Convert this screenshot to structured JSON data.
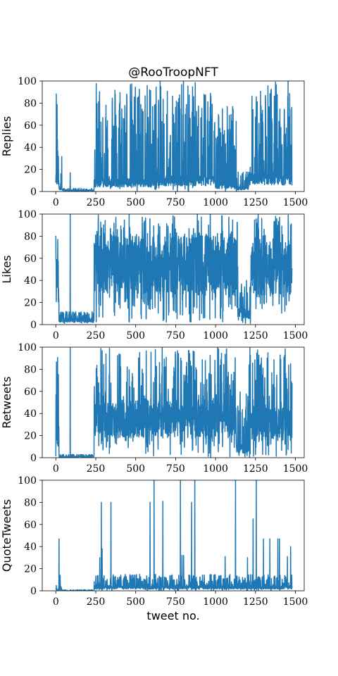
{
  "chart_data": {
    "type": "line",
    "title": "@RooTroopNFT",
    "xlabel": "tweet no.",
    "x_range": [
      0,
      1480
    ],
    "x_ticks": [
      0,
      250,
      500,
      750,
      1000,
      1250,
      1500
    ],
    "y_ticks": [
      0,
      20,
      40,
      60,
      80,
      100
    ],
    "line_color": "#1f77b4",
    "panels": [
      {
        "ylabel": "Replies",
        "ylim": [
          0,
          100
        ],
        "segments": [
          {
            "x0": 0,
            "x1": 20,
            "lo": 0,
            "hi": 100,
            "base": 10
          },
          {
            "x0": 20,
            "x1": 40,
            "lo": 0,
            "hi": 57,
            "base": 3
          },
          {
            "x0": 40,
            "x1": 240,
            "lo": 0,
            "hi": 3,
            "base": 1
          },
          {
            "x0": 240,
            "x1": 600,
            "lo": 0,
            "hi": 100,
            "base": 8
          },
          {
            "x0": 600,
            "x1": 1000,
            "lo": 0,
            "hi": 100,
            "base": 10
          },
          {
            "x0": 1000,
            "x1": 1130,
            "lo": 0,
            "hi": 80,
            "base": 5
          },
          {
            "x0": 1130,
            "x1": 1210,
            "lo": 0,
            "hi": 18,
            "base": 3
          },
          {
            "x0": 1210,
            "x1": 1480,
            "lo": 0,
            "hi": 100,
            "base": 12
          }
        ],
        "spikes": [
          [
            90,
            17
          ],
          [
            1460,
            45
          ],
          [
            1470,
            42
          ]
        ]
      },
      {
        "ylabel": "Likes",
        "ylim": [
          0,
          100
        ],
        "segments": [
          {
            "x0": 0,
            "x1": 20,
            "lo": 5,
            "hi": 100,
            "base": 40
          },
          {
            "x0": 20,
            "x1": 240,
            "lo": 1,
            "hi": 12,
            "base": 4
          },
          {
            "x0": 240,
            "x1": 1140,
            "lo": 2,
            "hi": 100,
            "base": 55
          },
          {
            "x0": 1140,
            "x1": 1220,
            "lo": 1,
            "hi": 40,
            "base": 10
          },
          {
            "x0": 1220,
            "x1": 1480,
            "lo": 10,
            "hi": 100,
            "base": 50
          }
        ],
        "spikes": [
          [
            90,
            100
          ],
          [
            1470,
            90
          ]
        ]
      },
      {
        "ylabel": "Retweets",
        "ylim": [
          0,
          100
        ],
        "segments": [
          {
            "x0": 0,
            "x1": 20,
            "lo": 0,
            "hi": 100,
            "base": 20
          },
          {
            "x0": 20,
            "x1": 240,
            "lo": 0,
            "hi": 3,
            "base": 1
          },
          {
            "x0": 240,
            "x1": 1130,
            "lo": 0,
            "hi": 100,
            "base": 35
          },
          {
            "x0": 1130,
            "x1": 1210,
            "lo": 0,
            "hi": 60,
            "base": 8
          },
          {
            "x0": 1210,
            "x1": 1480,
            "lo": 0,
            "hi": 100,
            "base": 30
          }
        ],
        "spikes": [
          [
            90,
            100
          ],
          [
            1470,
            85
          ]
        ]
      },
      {
        "ylabel": "QuoteTweets",
        "ylim": [
          0,
          100
        ],
        "segments": [
          {
            "x0": 0,
            "x1": 40,
            "lo": 0,
            "hi": 5,
            "base": 1
          },
          {
            "x0": 40,
            "x1": 240,
            "lo": 0,
            "hi": 1,
            "base": 0
          },
          {
            "x0": 240,
            "x1": 1480,
            "lo": 0,
            "hi": 15,
            "base": 3
          }
        ],
        "spikes": [
          [
            20,
            47
          ],
          [
            27,
            14
          ],
          [
            275,
            30
          ],
          [
            285,
            80
          ],
          [
            290,
            38
          ],
          [
            345,
            80
          ],
          [
            590,
            80
          ],
          [
            615,
            100
          ],
          [
            670,
            81
          ],
          [
            780,
            100
          ],
          [
            790,
            32
          ],
          [
            800,
            32
          ],
          [
            850,
            80
          ],
          [
            870,
            100
          ],
          [
            1060,
            31
          ],
          [
            1125,
            100
          ],
          [
            1200,
            30
          ],
          [
            1235,
            65
          ],
          [
            1255,
            100
          ],
          [
            1300,
            47
          ],
          [
            1340,
            47
          ],
          [
            1390,
            47
          ],
          [
            1400,
            47
          ],
          [
            1450,
            31
          ],
          [
            1470,
            40
          ]
        ]
      }
    ]
  }
}
